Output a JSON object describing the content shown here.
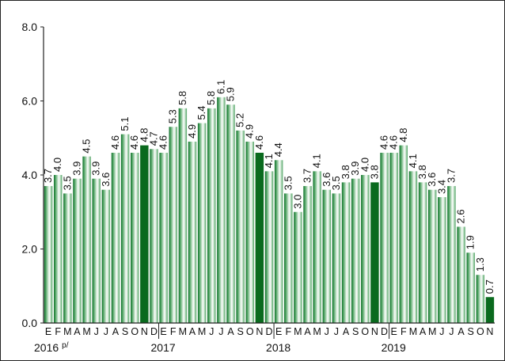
{
  "chart_data": {
    "type": "bar",
    "title": "",
    "xlabel": "",
    "ylabel": "",
    "ylim": [
      0,
      8
    ],
    "yticks": [
      "0.0",
      "2.0",
      "4.0",
      "6.0",
      "8.0"
    ],
    "grid": false,
    "legend": "none",
    "month_labels": [
      "E",
      "F",
      "M",
      "A",
      "M",
      "J",
      "J",
      "A",
      "S",
      "O",
      "N",
      "D"
    ],
    "year_labels": [
      "2016 p/",
      "2017",
      "2018",
      "2019"
    ],
    "categories": [
      "2016-E",
      "2016-F",
      "2016-M",
      "2016-A",
      "2016-M",
      "2016-J",
      "2016-J",
      "2016-A",
      "2016-S",
      "2016-O",
      "2016-N",
      "2016-D",
      "2017-E",
      "2017-F",
      "2017-M",
      "2017-A",
      "2017-M",
      "2017-J",
      "2017-J",
      "2017-A",
      "2017-S",
      "2017-O",
      "2017-N",
      "2017-D",
      "2018-E",
      "2018-F",
      "2018-M",
      "2018-A",
      "2018-M",
      "2018-J",
      "2018-J",
      "2018-A",
      "2018-S",
      "2018-O",
      "2018-N",
      "2018-D",
      "2019-E",
      "2019-F",
      "2019-M",
      "2019-A",
      "2019-M",
      "2019-J",
      "2019-J",
      "2019-A",
      "2019-S",
      "2019-O",
      "2019-N"
    ],
    "values": [
      3.7,
      4.0,
      3.5,
      3.9,
      4.5,
      3.9,
      3.6,
      4.6,
      5.1,
      4.6,
      4.8,
      4.7,
      4.6,
      5.3,
      5.8,
      4.9,
      5.4,
      5.8,
      6.1,
      5.9,
      5.2,
      4.9,
      4.6,
      4.1,
      4.4,
      3.5,
      3.0,
      3.7,
      4.1,
      3.6,
      3.5,
      3.8,
      3.9,
      4.0,
      3.8,
      4.6,
      4.6,
      4.8,
      4.1,
      3.8,
      3.6,
      3.4,
      3.7,
      2.6,
      1.9,
      1.3,
      0.7
    ],
    "value_labels": [
      "3.7",
      "4.0",
      "3.5",
      "3.9",
      "4.5",
      "3.9",
      "3.6",
      "4.6",
      "5.1",
      "4.6",
      "4.8",
      "4.7",
      "4.6",
      "5.3",
      "5.8",
      "4.9",
      "5.4",
      "5.8",
      "6.1",
      "5.9",
      "5.2",
      "4.9",
      "4.6",
      "4.1",
      "4.4",
      "3.5",
      "3.0",
      "3.7",
      "4.1",
      "3.6",
      "3.5",
      "3.8",
      "3.9",
      "4.0",
      "3.8",
      "4.6",
      "4.6",
      "4.8",
      "4.1",
      "3.8",
      "3.6",
      "3.4",
      "3.7",
      "2.6",
      "1.9",
      "1.3",
      "0.7"
    ],
    "highlighted_indices": [
      10,
      22,
      34,
      46
    ],
    "colors": {
      "bar_light": "#b9dcc0",
      "bar_mid": "#4aa05e",
      "bar_dark": "#0f6e2a",
      "highlight": "#0a6a1e",
      "axis": "#222222"
    }
  }
}
